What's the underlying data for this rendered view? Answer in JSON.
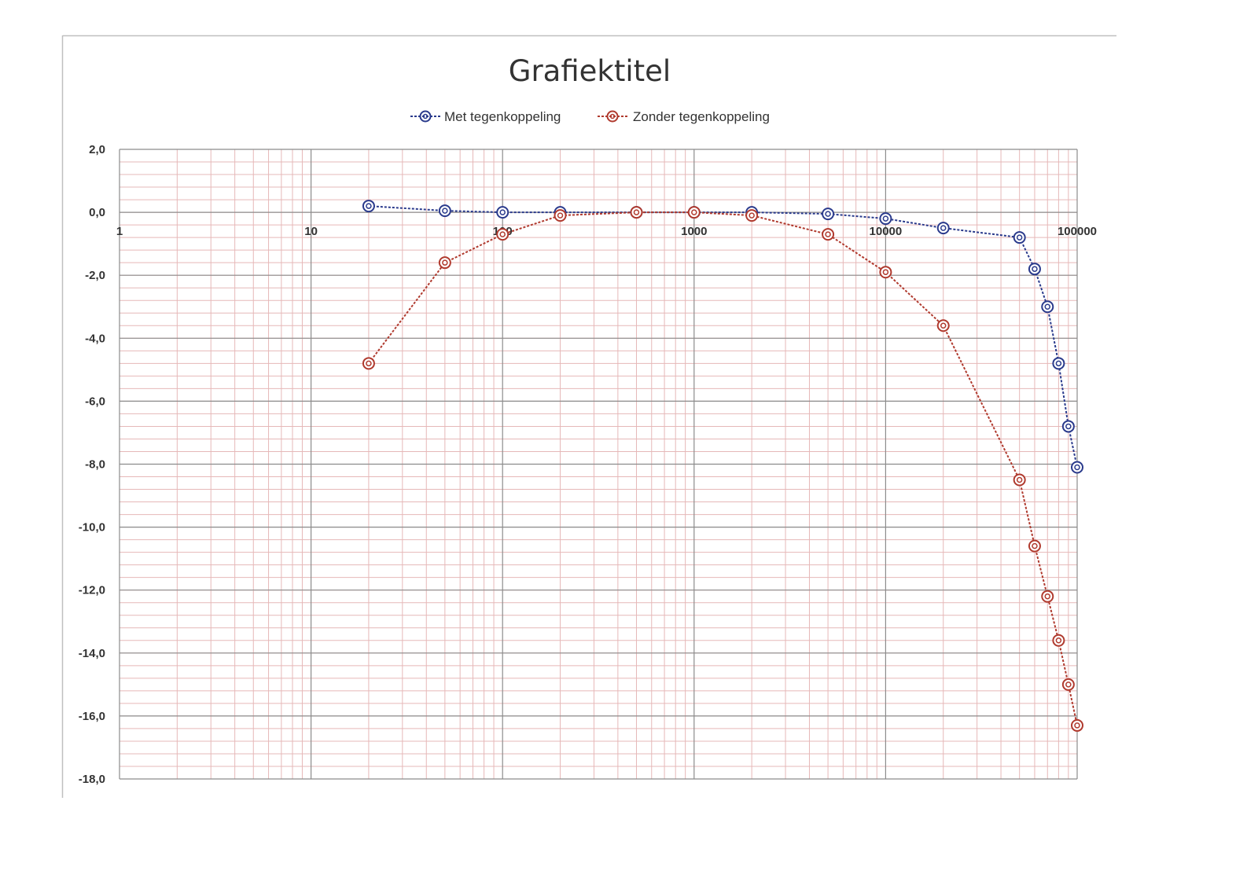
{
  "chart_data": {
    "type": "line",
    "title": "Grafiektitel",
    "xlabel": "",
    "ylabel": "",
    "x_scale": "log",
    "xlim": [
      1,
      100000
    ],
    "ylim": [
      -18,
      2
    ],
    "x_ticks": [
      "1",
      "10",
      "100",
      "1000",
      "10000",
      "100000"
    ],
    "y_ticks": [
      "2,0",
      "0,0",
      "-2,0",
      "-4,0",
      "-6,0",
      "-8,0",
      "-10,0",
      "-12,0",
      "-14,0",
      "-16,0",
      "-18,0"
    ],
    "grid": true,
    "legend_position": "top",
    "series": [
      {
        "name": "Met tegenkoppeling",
        "color": "#2a3a8c",
        "x": [
          20,
          50,
          100,
          200,
          500,
          1000,
          2000,
          5000,
          10000,
          20000,
          50000,
          60000,
          70000,
          80000,
          90000,
          100000
        ],
        "values": [
          0.2,
          0.05,
          0.0,
          0.0,
          0.0,
          0.0,
          0.0,
          -0.05,
          -0.2,
          -0.5,
          -0.8,
          -1.8,
          -3.0,
          -4.8,
          -6.8,
          -8.1
        ]
      },
      {
        "name": "Zonder tegenkoppeling",
        "color": "#b03a2e",
        "x": [
          20,
          50,
          100,
          200,
          500,
          1000,
          2000,
          5000,
          10000,
          20000,
          50000,
          60000,
          70000,
          80000,
          90000,
          100000
        ],
        "values": [
          -4.8,
          -1.6,
          -0.7,
          -0.1,
          0.0,
          0.0,
          -0.1,
          -0.7,
          -1.9,
          -3.6,
          -8.5,
          -10.6,
          -12.2,
          -13.6,
          -15.0,
          -16.3
        ]
      }
    ]
  }
}
